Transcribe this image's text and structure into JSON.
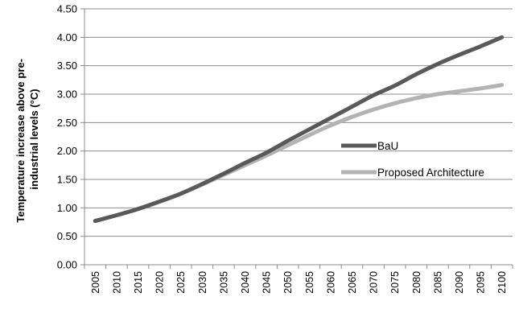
{
  "chart_data": {
    "type": "line",
    "title": "",
    "xlabel": "",
    "ylabel_lines": [
      "Temperature increase above pre-",
      "industrial levels (°C)"
    ],
    "ylim": [
      0,
      4.5
    ],
    "yticks": [
      "0.00",
      "0.50",
      "1.00",
      "1.50",
      "2.00",
      "2.50",
      "3.00",
      "3.50",
      "4.00",
      "4.50"
    ],
    "ytick_values": [
      0,
      0.5,
      1.0,
      1.5,
      2.0,
      2.5,
      3.0,
      3.5,
      4.0,
      4.5
    ],
    "grid": true,
    "legend_placement": "right",
    "categories": [
      "2005",
      "2010",
      "2015",
      "2020",
      "2025",
      "2030",
      "2035",
      "2040",
      "2045",
      "2050",
      "2055",
      "2060",
      "2065",
      "2070",
      "2075",
      "2080",
      "2085",
      "2090",
      "2095",
      "2100"
    ],
    "series": [
      {
        "name": "BaU",
        "color": "#595959",
        "values": [
          0.77,
          0.87,
          0.98,
          1.11,
          1.25,
          1.42,
          1.6,
          1.79,
          1.97,
          2.18,
          2.38,
          2.58,
          2.78,
          2.98,
          3.15,
          3.35,
          3.53,
          3.69,
          3.84,
          4.0
        ]
      },
      {
        "name": "Proposed Architecture",
        "color": "#b3b3b3",
        "values": [
          0.77,
          0.87,
          0.98,
          1.11,
          1.25,
          1.41,
          1.58,
          1.75,
          1.92,
          2.1,
          2.28,
          2.45,
          2.6,
          2.73,
          2.84,
          2.93,
          3.0,
          3.05,
          3.1,
          3.16
        ]
      }
    ]
  }
}
